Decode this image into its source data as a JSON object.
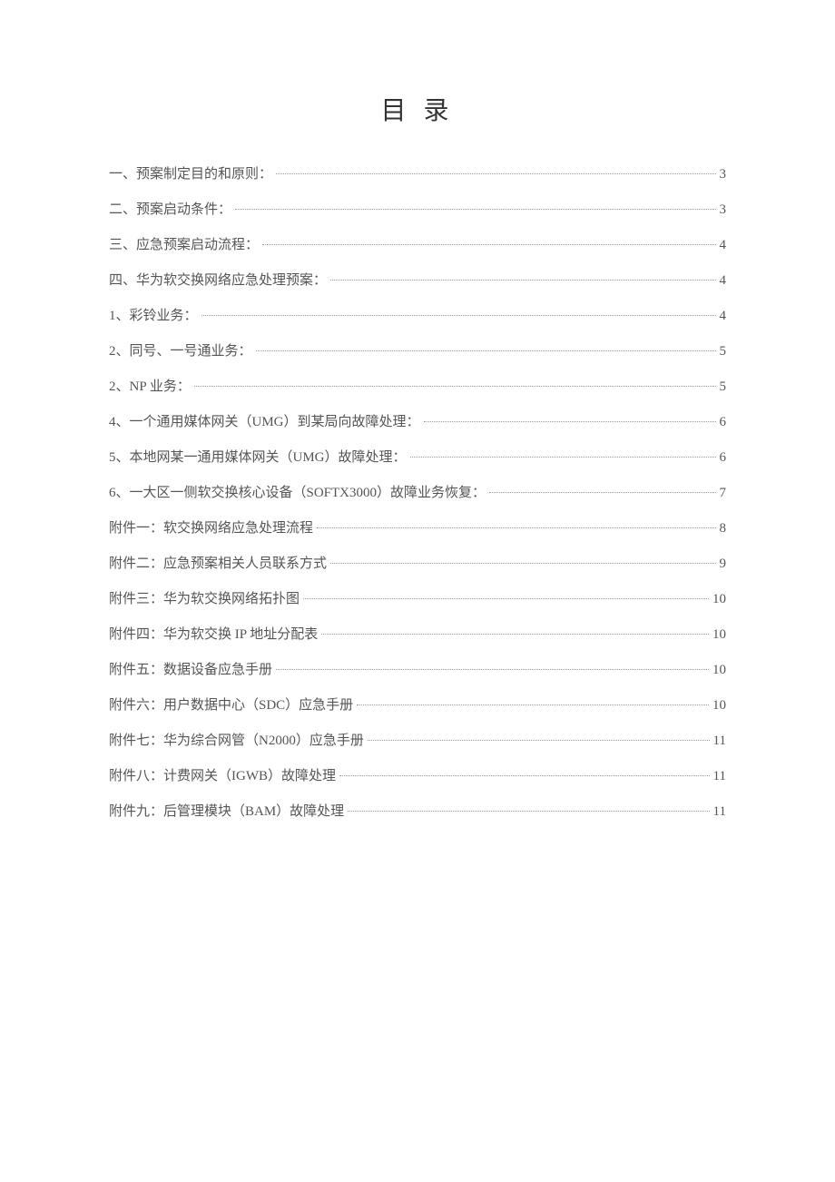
{
  "document": {
    "title": "目 录",
    "background_color": "#ffffff",
    "text_color": "#555555",
    "title_color": "#333333",
    "dot_color": "#999999",
    "title_fontsize": 28,
    "entry_fontsize": 15,
    "entry_spacing": 18
  },
  "toc": {
    "entries": [
      {
        "label": "一、预案制定目的和原则：",
        "page": "3"
      },
      {
        "label": "二、预案启动条件：",
        "page": "3"
      },
      {
        "label": "三、应急预案启动流程：",
        "page": "4"
      },
      {
        "label": "四、华为软交换网络应急处理预案：",
        "page": "4"
      },
      {
        "label": "1、彩铃业务：",
        "page": "4"
      },
      {
        "label": "2、同号、一号通业务：",
        "page": "5"
      },
      {
        "label": "2、NP 业务：",
        "page": "5"
      },
      {
        "label": "4、一个通用媒体网关（UMG）到某局向故障处理：",
        "page": "6"
      },
      {
        "label": "5、本地网某一通用媒体网关（UMG）故障处理：",
        "page": "6"
      },
      {
        "label": "6、一大区一侧软交换核心设备（SOFTX3000）故障业务恢复：",
        "page": "7"
      },
      {
        "label": "附件一：软交换网络应急处理流程",
        "page": "8"
      },
      {
        "label": "附件二：应急预案相关人员联系方式",
        "page": "9"
      },
      {
        "label": "附件三：华为软交换网络拓扑图",
        "page": "10"
      },
      {
        "label": "附件四：华为软交换 IP 地址分配表",
        "page": "10"
      },
      {
        "label": "附件五：数据设备应急手册",
        "page": "10"
      },
      {
        "label": "附件六：用户数据中心（SDC）应急手册",
        "page": "10"
      },
      {
        "label": "附件七：华为综合网管（N2000）应急手册",
        "page": "11"
      },
      {
        "label": "附件八：计费网关（IGWB）故障处理",
        "page": "11"
      },
      {
        "label": "附件九：后管理模块（BAM）故障处理",
        "page": "11"
      }
    ]
  }
}
